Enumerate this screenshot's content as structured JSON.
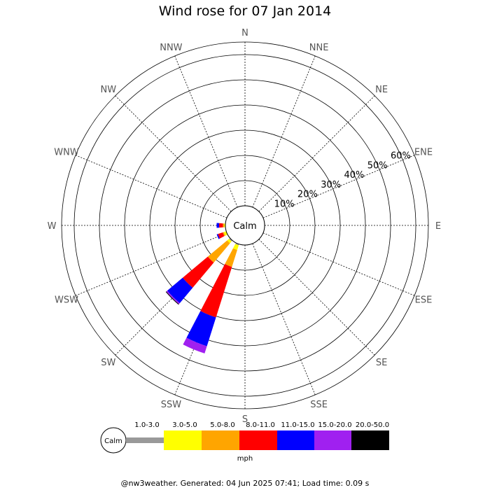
{
  "chart_data": {
    "type": "wind-rose",
    "title": "Wind rose for 07 Jan 2014",
    "directions": [
      "N",
      "NNE",
      "NE",
      "ENE",
      "E",
      "ESE",
      "SE",
      "SSE",
      "S",
      "SSW",
      "SW",
      "WSW",
      "W",
      "WNW",
      "NW",
      "NNW"
    ],
    "radial_ticks": [
      "10%",
      "20%",
      "30%",
      "40%",
      "50%",
      "60%"
    ],
    "rmax": 65,
    "calm_label": "Calm",
    "unit": "mph",
    "speed_bins": [
      {
        "label": "1.0-3.0",
        "color": "#999999"
      },
      {
        "label": "3.0-5.0",
        "color": "#ffff00"
      },
      {
        "label": "5.0-8.0",
        "color": "#ffa500"
      },
      {
        "label": "8.0-11.0",
        "color": "#ff0000"
      },
      {
        "label": "11.0-15.0",
        "color": "#0000ff"
      },
      {
        "label": "15.0-20.0",
        "color": "#a020f0"
      },
      {
        "label": "20.0-50.0",
        "color": "#000000"
      }
    ],
    "frequencies": [
      {
        "direction": "N",
        "values": [
          0,
          0,
          0,
          0,
          0,
          0,
          0
        ]
      },
      {
        "direction": "NNE",
        "values": [
          0,
          0,
          0,
          0,
          0,
          0,
          0
        ]
      },
      {
        "direction": "NE",
        "values": [
          0,
          0,
          0,
          0,
          0,
          0,
          0
        ]
      },
      {
        "direction": "ENE",
        "values": [
          0,
          0,
          0,
          0,
          0,
          0,
          0
        ]
      },
      {
        "direction": "E",
        "values": [
          0,
          0,
          0,
          0,
          0,
          0,
          0
        ]
      },
      {
        "direction": "ESE",
        "values": [
          0,
          0,
          0,
          0,
          0,
          0,
          0
        ]
      },
      {
        "direction": "SE",
        "values": [
          0,
          0,
          0,
          0,
          0,
          0,
          0
        ]
      },
      {
        "direction": "SSE",
        "values": [
          0,
          0,
          0,
          0,
          0,
          0,
          0
        ]
      },
      {
        "direction": "S",
        "values": [
          0,
          0,
          0,
          0,
          0,
          0,
          0
        ]
      },
      {
        "direction": "SSW",
        "values": [
          0.5,
          2,
          7,
          21,
          12,
          3,
          0
        ]
      },
      {
        "direction": "SW",
        "values": [
          0.5,
          1,
          10,
          13,
          8,
          0.5,
          0.3
        ]
      },
      {
        "direction": "WSW",
        "values": [
          0,
          1,
          0.5,
          2,
          0.5,
          0,
          0
        ]
      },
      {
        "direction": "W",
        "values": [
          0,
          0.5,
          0.5,
          1.5,
          1,
          0,
          0
        ]
      },
      {
        "direction": "WNW",
        "values": [
          0,
          0,
          0,
          0,
          0,
          0,
          0
        ]
      },
      {
        "direction": "NW",
        "values": [
          0,
          0,
          0,
          0,
          0,
          0,
          0
        ]
      },
      {
        "direction": "NNW",
        "values": [
          0,
          0,
          0,
          0,
          0,
          0,
          0
        ]
      }
    ]
  },
  "footer": "@nw3weather. Generated: 04 Jun 2025 07:41; Load time: 0.09 s"
}
